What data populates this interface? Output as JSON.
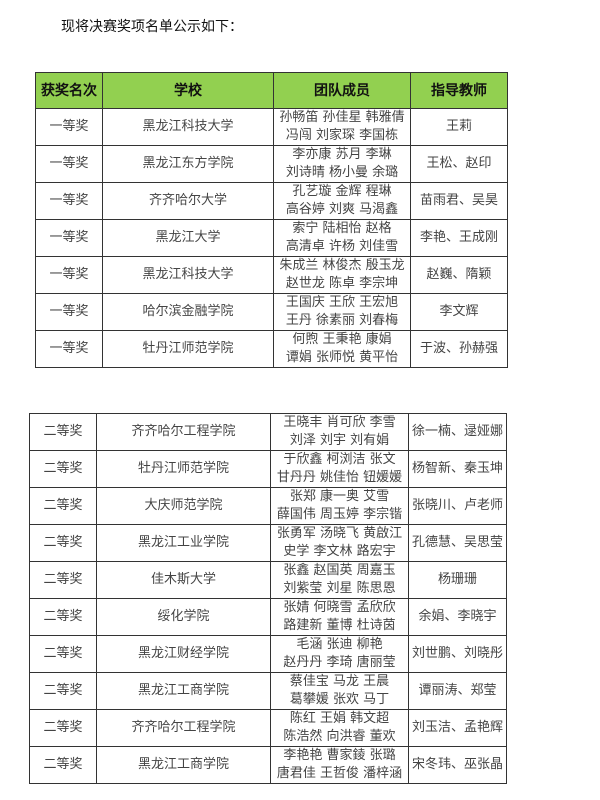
{
  "intro": "现将决赛奖项名单公示如下：",
  "header_color": "#92d050",
  "headers": [
    "获奖名次",
    "学校",
    "团队成员",
    "指导教师"
  ],
  "table1": [
    {
      "rank": "一等奖",
      "school": "黑龙江科技大学",
      "members": [
        "孙畅笛 孙佳星 韩雅倩",
        "冯闯 刘家琛 李国栋"
      ],
      "advisor": "王莉"
    },
    {
      "rank": "一等奖",
      "school": "黑龙江东方学院",
      "members": [
        "李亦康 苏月 李琳",
        "刘诗晴 杨小曼 余璐"
      ],
      "advisor": "王松、赵印"
    },
    {
      "rank": "一等奖",
      "school": "齐齐哈尔大学",
      "members": [
        "孔艺璇 金辉 程琳",
        "高谷婷 刘爽 马渴鑫"
      ],
      "advisor": "苗雨君、吴昊"
    },
    {
      "rank": "一等奖",
      "school": "黑龙江大学",
      "members": [
        "索宁 陆相怡 赵格",
        "高清卓 许杨 刘佳雪"
      ],
      "advisor": "李艳、王成刚"
    },
    {
      "rank": "一等奖",
      "school": "黑龙江科技大学",
      "members": [
        "朱成兰 林俊杰 殷玉龙",
        "赵世龙 陈卓 李宗坤"
      ],
      "advisor": "赵巍、隋颖"
    },
    {
      "rank": "一等奖",
      "school": "哈尔滨金融学院",
      "members": [
        "王国庆 王欣 王宏旭",
        "王丹 徐素丽 刘春梅"
      ],
      "advisor": "李文辉"
    },
    {
      "rank": "一等奖",
      "school": "牡丹江师范学院",
      "members": [
        "何煦 王秉艳 康娟",
        "谭娟 张师悦 黄平怡"
      ],
      "advisor": "于波、孙赫强"
    }
  ],
  "table2": [
    {
      "rank": "二等奖",
      "school": "齐齐哈尔工程学院",
      "members": [
        "王晓丰 肖可欣 李雪",
        "刘泽 刘宇 刘有娟"
      ],
      "advisor": "徐一楠、逯娅娜"
    },
    {
      "rank": "二等奖",
      "school": "牡丹江师范学院",
      "members": [
        "于欣鑫 柯浏洁 张文",
        "甘丹丹 姚佳怡 钮媛媛"
      ],
      "advisor": "杨智新、秦玉坤"
    },
    {
      "rank": "二等奖",
      "school": "大庆师范学院",
      "members": [
        "张郑 康一奥 艾雪",
        "薛国伟 周玉婷 李宗锴"
      ],
      "advisor": "张晓川、卢老师"
    },
    {
      "rank": "二等奖",
      "school": "黑龙江工业学院",
      "members": [
        "张勇军 汤晓飞 黄啟江",
        "史学 李文林 路宏宇"
      ],
      "advisor": "孔德慧、吴思莹"
    },
    {
      "rank": "二等奖",
      "school": "佳木斯大学",
      "members": [
        "张鑫 赵国英 周嘉玉",
        "刘紫莹 刘星 陈思恩"
      ],
      "advisor": "杨珊珊"
    },
    {
      "rank": "二等奖",
      "school": "绥化学院",
      "members": [
        "张婧 何晓雪 孟欣欣",
        "路建新 董博 杜诗茵"
      ],
      "advisor": "余娟、李晓宇"
    },
    {
      "rank": "二等奖",
      "school": "黑龙江财经学院",
      "members": [
        "毛涵 张迪 柳艳",
        "赵丹丹 李琦 唐丽莹"
      ],
      "advisor": "刘世鹏、刘晓彤"
    },
    {
      "rank": "二等奖",
      "school": "黑龙江工商学院",
      "members": [
        "蔡佳宝 马龙 王晨",
        "葛攀媛 张欢 马丁"
      ],
      "advisor": "谭丽涛、郑莹"
    },
    {
      "rank": "二等奖",
      "school": "齐齐哈尔工程学院",
      "members": [
        "陈红 王娟 韩文超",
        "陈浩然 向洪睿 董欢"
      ],
      "advisor": "刘玉洁、孟艳辉"
    },
    {
      "rank": "二等奖",
      "school": "黑龙江工商学院",
      "members": [
        "李艳艳 曹家錂 张璐",
        "唐君佳 王哲俊 潘梓涵"
      ],
      "advisor": "宋冬玮、巫张晶"
    }
  ]
}
